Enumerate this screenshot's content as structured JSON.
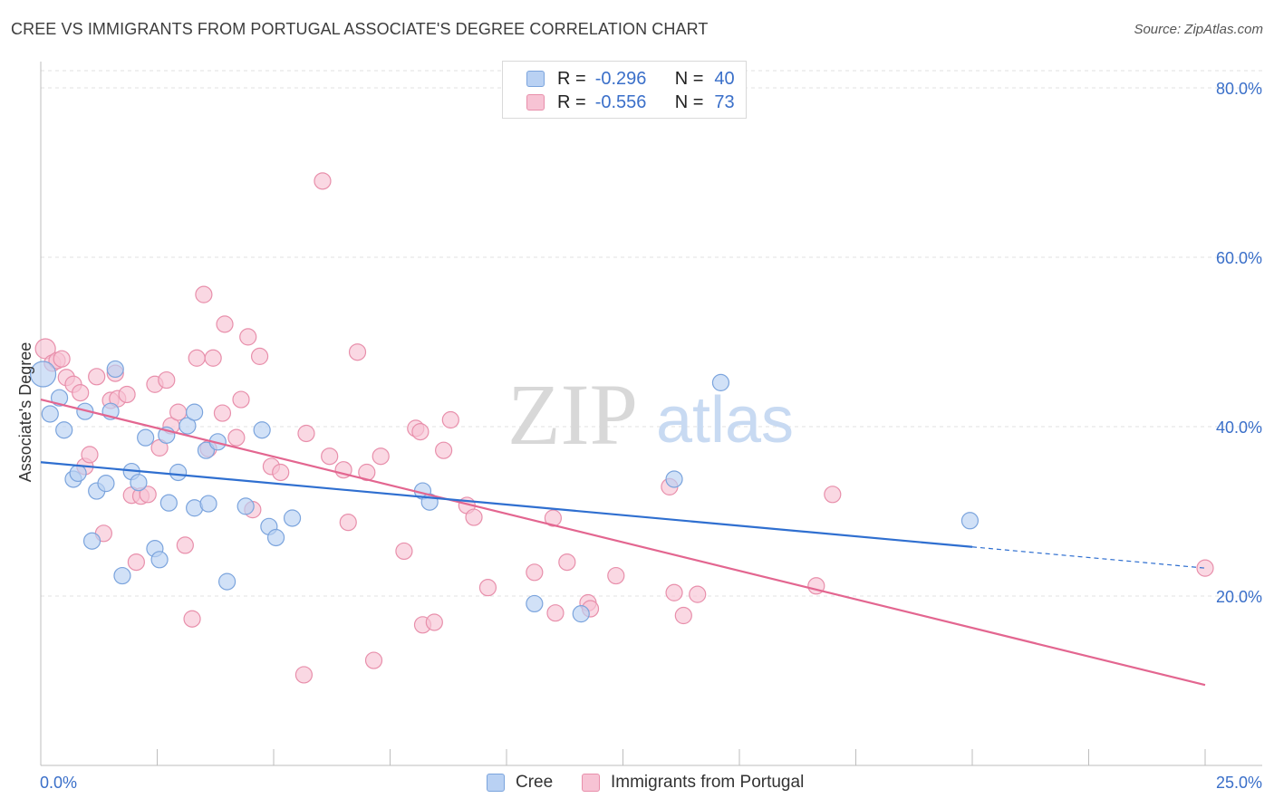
{
  "title": "CREE VS IMMIGRANTS FROM PORTUGAL ASSOCIATE'S DEGREE CORRELATION CHART",
  "source": "Source: ZipAtlas.com",
  "watermark": {
    "zip": "ZIP",
    "atlas": "atlas"
  },
  "legend": {
    "r_label": "R =",
    "n_label": "N =",
    "cree": {
      "r": "-0.296",
      "n": "40"
    },
    "portugal": {
      "r": "-0.556",
      "n": "73"
    }
  },
  "bottom_legend": {
    "cree": "Cree",
    "portugal": "Immigrants from Portugal"
  },
  "colors": {
    "cree_fill": "#b9d1f3",
    "cree_stroke": "#7ba4dd",
    "cree_line": "#2f6fd0",
    "portugal_fill": "#f7c3d4",
    "portugal_stroke": "#e88fab",
    "portugal_line": "#e36690",
    "tick_label": "#3a6fc9",
    "grid": "#e2e2e2"
  },
  "chart_data": {
    "type": "scatter",
    "title": "CREE VS IMMIGRANTS FROM PORTUGAL ASSOCIATE'S DEGREE CORRELATION CHART",
    "xlabel": "",
    "ylabel": "Associate's Degree",
    "xlim": [
      0,
      25
    ],
    "ylim": [
      0,
      80
    ],
    "x_tick_labels": [
      "0.0%",
      "25.0%"
    ],
    "y_ticks": [
      20,
      40,
      60,
      80
    ],
    "y_tick_labels": [
      "20.0%",
      "40.0%",
      "60.0%",
      "80.0%"
    ],
    "grid": true,
    "series": [
      {
        "name": "Cree",
        "r": -0.296,
        "n": 40,
        "trend": {
          "x0": 0,
          "y0": 35.8,
          "x1": 20,
          "y1": 25.8,
          "dashed_to_x": 25,
          "dashed_to_y": 23.3
        },
        "points": [
          [
            0.05,
            46.2
          ],
          [
            0.2,
            41.5
          ],
          [
            0.4,
            43.4
          ],
          [
            0.5,
            39.6
          ],
          [
            0.7,
            33.8
          ],
          [
            0.8,
            34.5
          ],
          [
            0.95,
            41.8
          ],
          [
            1.1,
            26.5
          ],
          [
            1.2,
            32.4
          ],
          [
            1.4,
            33.3
          ],
          [
            1.5,
            41.8
          ],
          [
            1.6,
            46.8
          ],
          [
            1.75,
            22.4
          ],
          [
            1.95,
            34.7
          ],
          [
            2.1,
            33.4
          ],
          [
            2.25,
            38.7
          ],
          [
            2.45,
            25.6
          ],
          [
            2.55,
            24.3
          ],
          [
            2.7,
            39.0
          ],
          [
            2.75,
            31.0
          ],
          [
            2.95,
            34.6
          ],
          [
            3.15,
            40.1
          ],
          [
            3.3,
            41.7
          ],
          [
            3.3,
            30.4
          ],
          [
            3.55,
            37.2
          ],
          [
            3.6,
            30.9
          ],
          [
            3.8,
            38.2
          ],
          [
            4.0,
            21.7
          ],
          [
            4.4,
            30.6
          ],
          [
            4.75,
            39.6
          ],
          [
            4.9,
            28.2
          ],
          [
            5.05,
            26.9
          ],
          [
            5.4,
            29.2
          ],
          [
            8.2,
            32.4
          ],
          [
            8.35,
            31.1
          ],
          [
            10.6,
            19.1
          ],
          [
            11.6,
            17.9
          ],
          [
            13.6,
            33.8
          ],
          [
            14.6,
            45.2
          ],
          [
            19.95,
            28.9
          ]
        ]
      },
      {
        "name": "Immigrants from Portugal",
        "r": -0.556,
        "n": 73,
        "trend": {
          "x0": 0,
          "y0": 43.2,
          "x1": 25,
          "y1": 9.5
        },
        "points": [
          [
            0.1,
            49.2
          ],
          [
            0.25,
            47.5
          ],
          [
            0.35,
            47.8
          ],
          [
            0.45,
            48.0
          ],
          [
            0.55,
            45.8
          ],
          [
            0.7,
            45.0
          ],
          [
            0.85,
            44.0
          ],
          [
            0.95,
            35.3
          ],
          [
            1.05,
            36.7
          ],
          [
            1.2,
            45.9
          ],
          [
            1.35,
            27.4
          ],
          [
            1.5,
            43.1
          ],
          [
            1.6,
            46.3
          ],
          [
            1.65,
            43.3
          ],
          [
            1.85,
            43.8
          ],
          [
            1.95,
            31.9
          ],
          [
            2.05,
            24.0
          ],
          [
            2.15,
            31.8
          ],
          [
            2.3,
            32.0
          ],
          [
            2.45,
            45.0
          ],
          [
            2.55,
            37.5
          ],
          [
            2.7,
            45.5
          ],
          [
            2.8,
            40.1
          ],
          [
            2.95,
            41.7
          ],
          [
            3.1,
            26.0
          ],
          [
            3.25,
            17.3
          ],
          [
            3.35,
            48.1
          ],
          [
            3.5,
            55.6
          ],
          [
            3.6,
            37.4
          ],
          [
            3.7,
            48.1
          ],
          [
            3.9,
            41.6
          ],
          [
            3.95,
            52.1
          ],
          [
            4.2,
            38.7
          ],
          [
            4.3,
            43.2
          ],
          [
            4.45,
            50.6
          ],
          [
            4.55,
            30.2
          ],
          [
            4.7,
            48.3
          ],
          [
            4.95,
            35.3
          ],
          [
            5.15,
            34.6
          ],
          [
            5.65,
            10.7
          ],
          [
            5.7,
            39.2
          ],
          [
            6.05,
            69.0
          ],
          [
            6.2,
            36.5
          ],
          [
            6.5,
            34.9
          ],
          [
            6.6,
            28.7
          ],
          [
            6.8,
            48.8
          ],
          [
            7.0,
            34.6
          ],
          [
            7.15,
            12.4
          ],
          [
            7.3,
            36.5
          ],
          [
            7.8,
            25.3
          ],
          [
            8.05,
            39.8
          ],
          [
            8.15,
            39.4
          ],
          [
            8.2,
            16.6
          ],
          [
            8.45,
            16.9
          ],
          [
            8.65,
            37.2
          ],
          [
            8.8,
            40.8
          ],
          [
            9.15,
            30.7
          ],
          [
            9.3,
            29.3
          ],
          [
            9.6,
            21.0
          ],
          [
            10.6,
            22.8
          ],
          [
            11.0,
            29.2
          ],
          [
            11.05,
            18.0
          ],
          [
            11.3,
            24.0
          ],
          [
            11.75,
            19.2
          ],
          [
            11.8,
            18.5
          ],
          [
            12.35,
            22.4
          ],
          [
            13.5,
            32.9
          ],
          [
            13.6,
            20.4
          ],
          [
            13.8,
            17.7
          ],
          [
            14.1,
            20.2
          ],
          [
            16.65,
            21.2
          ],
          [
            17.0,
            32.0
          ],
          [
            25.0,
            23.3
          ]
        ]
      }
    ]
  }
}
